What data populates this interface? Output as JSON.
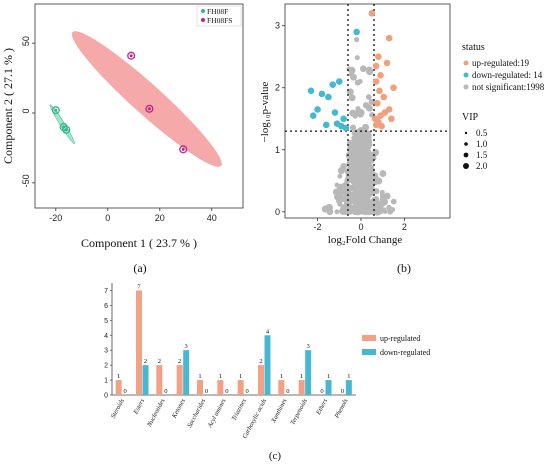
{
  "panels": {
    "a": {
      "label": "(a)"
    },
    "b": {
      "label": "(b)"
    },
    "c": {
      "label": "(c)"
    }
  },
  "chart_data": [
    {
      "id": "pca",
      "type": "scatter",
      "xlabel": "Component 1 ( 23.7 % )",
      "ylabel": "Component 2 ( 27.1 % )",
      "xlim": [
        -28,
        52
      ],
      "ylim": [
        -68,
        78
      ],
      "xticks": [
        -20,
        0,
        20,
        40
      ],
      "yticks": [
        -50,
        0,
        50
      ],
      "grid": false,
      "legend": {
        "placement": "top-right",
        "entries": [
          {
            "name": "FH08F",
            "color": "#33b58e"
          },
          {
            "name": "FH08FS",
            "color": "#c0208a"
          }
        ]
      },
      "series": [
        {
          "name": "FH08F",
          "color": "#33b58e",
          "ellipse_color": "#9fe0c8",
          "points": [
            {
              "x": -20,
              "y": 2
            },
            {
              "x": -17,
              "y": -10
            },
            {
              "x": -16,
              "y": -12
            }
          ]
        },
        {
          "name": "FH08FS",
          "color": "#c0208a",
          "ellipse_color": "#f59a9a",
          "points": [
            {
              "x": 9,
              "y": 41
            },
            {
              "x": 16,
              "y": 3
            },
            {
              "x": 29,
              "y": -26
            }
          ]
        }
      ]
    },
    {
      "id": "volcano",
      "type": "scatter",
      "xlabel": "log₂Fold Change",
      "ylabel": "−log₁₀p-value",
      "xlim": [
        -3.5,
        4.1
      ],
      "ylim": [
        -0.1,
        3.35
      ],
      "xticks": [
        -2,
        0,
        2
      ],
      "yticks": [
        0,
        1,
        2,
        3
      ],
      "thresholds": {
        "x": [
          -0.6,
          0.6
        ],
        "y": 1.3
      },
      "legend": {
        "placement": "right",
        "status_title": "status",
        "status": [
          {
            "label": "up-regulated:19",
            "color": "#f0a07a"
          },
          {
            "label": "down-regulated: 14",
            "color": "#45b8d2"
          },
          {
            "label": "not significant:1998",
            "color": "#b8b8b8"
          }
        ],
        "vip_title": "VIP",
        "vip": [
          "0.5",
          "1.0",
          "1.5",
          "2.0"
        ]
      },
      "series": [
        {
          "name": "up-regulated",
          "color": "#f0a07a",
          "points": [
            [
              0.5,
              3.2
            ],
            [
              1.3,
              2.8
            ],
            [
              0.8,
              2.5
            ],
            [
              0.7,
              2.35
            ],
            [
              1.2,
              2.4
            ],
            [
              0.9,
              2.2
            ],
            [
              1.5,
              2.0
            ],
            [
              0.7,
              2.1
            ],
            [
              0.85,
              1.95
            ],
            [
              1.05,
              1.85
            ],
            [
              0.75,
              1.75
            ],
            [
              1.3,
              1.65
            ],
            [
              0.9,
              1.55
            ],
            [
              0.65,
              1.5
            ],
            [
              0.8,
              1.45
            ],
            [
              1.1,
              1.6
            ],
            [
              0.7,
              1.4
            ],
            [
              0.95,
              1.38
            ],
            [
              1.4,
              1.5
            ]
          ]
        },
        {
          "name": "down-regulated",
          "color": "#45b8d2",
          "points": [
            [
              -0.2,
              2.9
            ],
            [
              -1.0,
              2.1
            ],
            [
              -1.3,
              2.05
            ],
            [
              -2.3,
              1.95
            ],
            [
              -1.8,
              1.9
            ],
            [
              -1.5,
              1.85
            ],
            [
              -2.0,
              1.65
            ],
            [
              -1.2,
              1.6
            ],
            [
              -2.2,
              1.55
            ],
            [
              -0.8,
              1.5
            ],
            [
              -1.1,
              1.42
            ],
            [
              -1.6,
              1.4
            ],
            [
              -0.9,
              1.38
            ],
            [
              -0.7,
              1.35
            ]
          ]
        },
        {
          "name": "not significant",
          "color": "#b8b8b8"
        }
      ]
    },
    {
      "id": "classes",
      "type": "bar",
      "categories": [
        "Steroids",
        "Esters",
        "Nucleotides",
        "Ketones",
        "Saccharides",
        "Acyl amines",
        "Triazines",
        "Carboxylic acids",
        "Xanthines",
        "Terpenoids",
        "Ethers",
        "Phenols"
      ],
      "ylim": [
        0,
        7.5
      ],
      "yticks": [
        0,
        1,
        2,
        3,
        4,
        5,
        6,
        7
      ],
      "legend": {
        "placement": "right"
      },
      "series": [
        {
          "name": "up-regulated",
          "color": "#f2a185",
          "values": [
            1,
            7,
            2,
            2,
            1,
            1,
            1,
            2,
            1,
            1,
            0,
            0
          ]
        },
        {
          "name": "down-regulated",
          "color": "#47b8d0",
          "values": [
            0,
            2,
            0,
            3,
            0,
            0,
            0,
            4,
            0,
            3,
            1,
            1
          ]
        }
      ]
    }
  ]
}
